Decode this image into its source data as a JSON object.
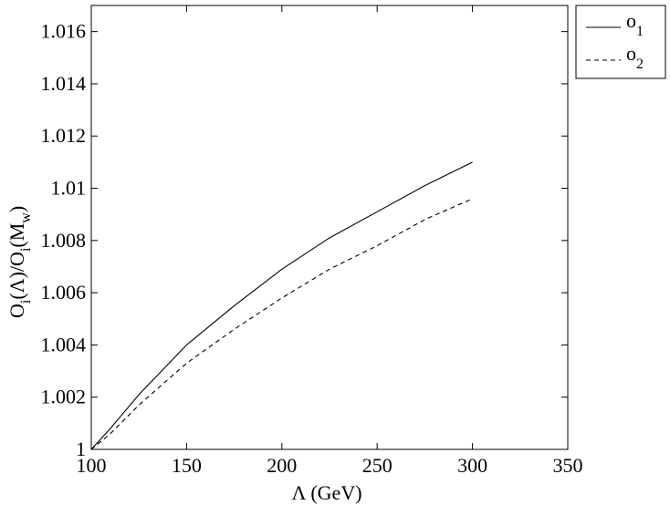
{
  "chart_data": {
    "type": "line",
    "xlabel": "Λ (GeV)",
    "ylabel_parts": {
      "o": "O",
      "i1": "i",
      "mid": "(Λ)/O",
      "i2": "i",
      "mw_open": "(M",
      "w": "w",
      "close": ")"
    },
    "xlim": [
      100,
      350
    ],
    "ylim": [
      1.0,
      1.017
    ],
    "xticks": [
      100,
      150,
      200,
      250,
      300,
      350
    ],
    "yticks": [
      1,
      1.002,
      1.004,
      1.006,
      1.008,
      1.01,
      1.012,
      1.014,
      1.016
    ],
    "xtick_labels": [
      "100",
      "150",
      "200",
      "250",
      "300",
      "350"
    ],
    "ytick_labels": [
      "1",
      "1.002",
      "1.004",
      "1.006",
      "1.008",
      "1.01",
      "1.012",
      "1.014",
      "1.016"
    ],
    "grid": false,
    "legend_position": "outside-top-right",
    "series": [
      {
        "name_base": "o",
        "name_sub": "1",
        "style": "solid",
        "color": "#000000",
        "x": [
          100,
          110,
          125,
          150,
          175,
          200,
          225,
          250,
          275,
          300
        ],
        "y": [
          1.0,
          1.0008,
          1.0021,
          1.004,
          1.0055,
          1.0069,
          1.0081,
          1.0091,
          1.0101,
          1.011
        ]
      },
      {
        "name_base": "o",
        "name_sub": "2",
        "style": "dashed",
        "color": "#000000",
        "x": [
          100,
          110,
          125,
          150,
          175,
          200,
          225,
          250,
          275,
          300
        ],
        "y": [
          1.0,
          1.0006,
          1.0017,
          1.0033,
          1.0046,
          1.0058,
          1.0069,
          1.0078,
          1.0088,
          1.0096
        ]
      }
    ]
  }
}
